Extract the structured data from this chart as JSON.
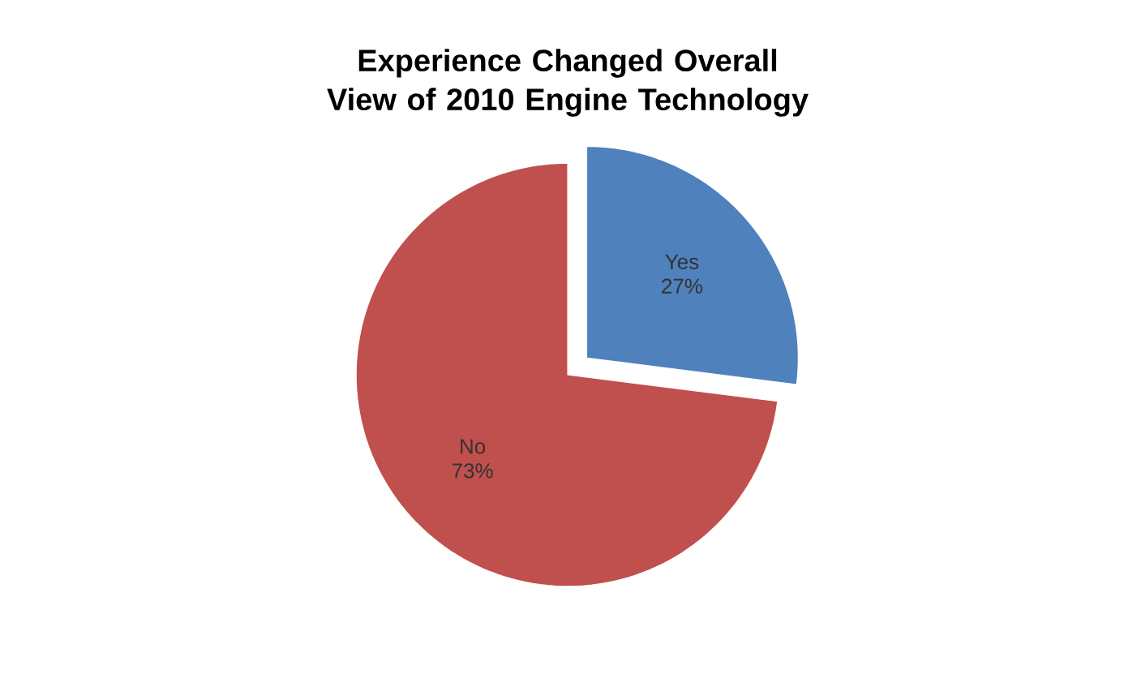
{
  "chart_data": {
    "type": "pie",
    "title": "Experience Changed Overall View of 2010 Engine Technology",
    "categories": [
      "Yes",
      "No"
    ],
    "values": [
      27,
      73
    ],
    "value_labels": [
      "27%",
      "73%"
    ],
    "colors": [
      "#4f81bd",
      "#c0504d"
    ]
  }
}
